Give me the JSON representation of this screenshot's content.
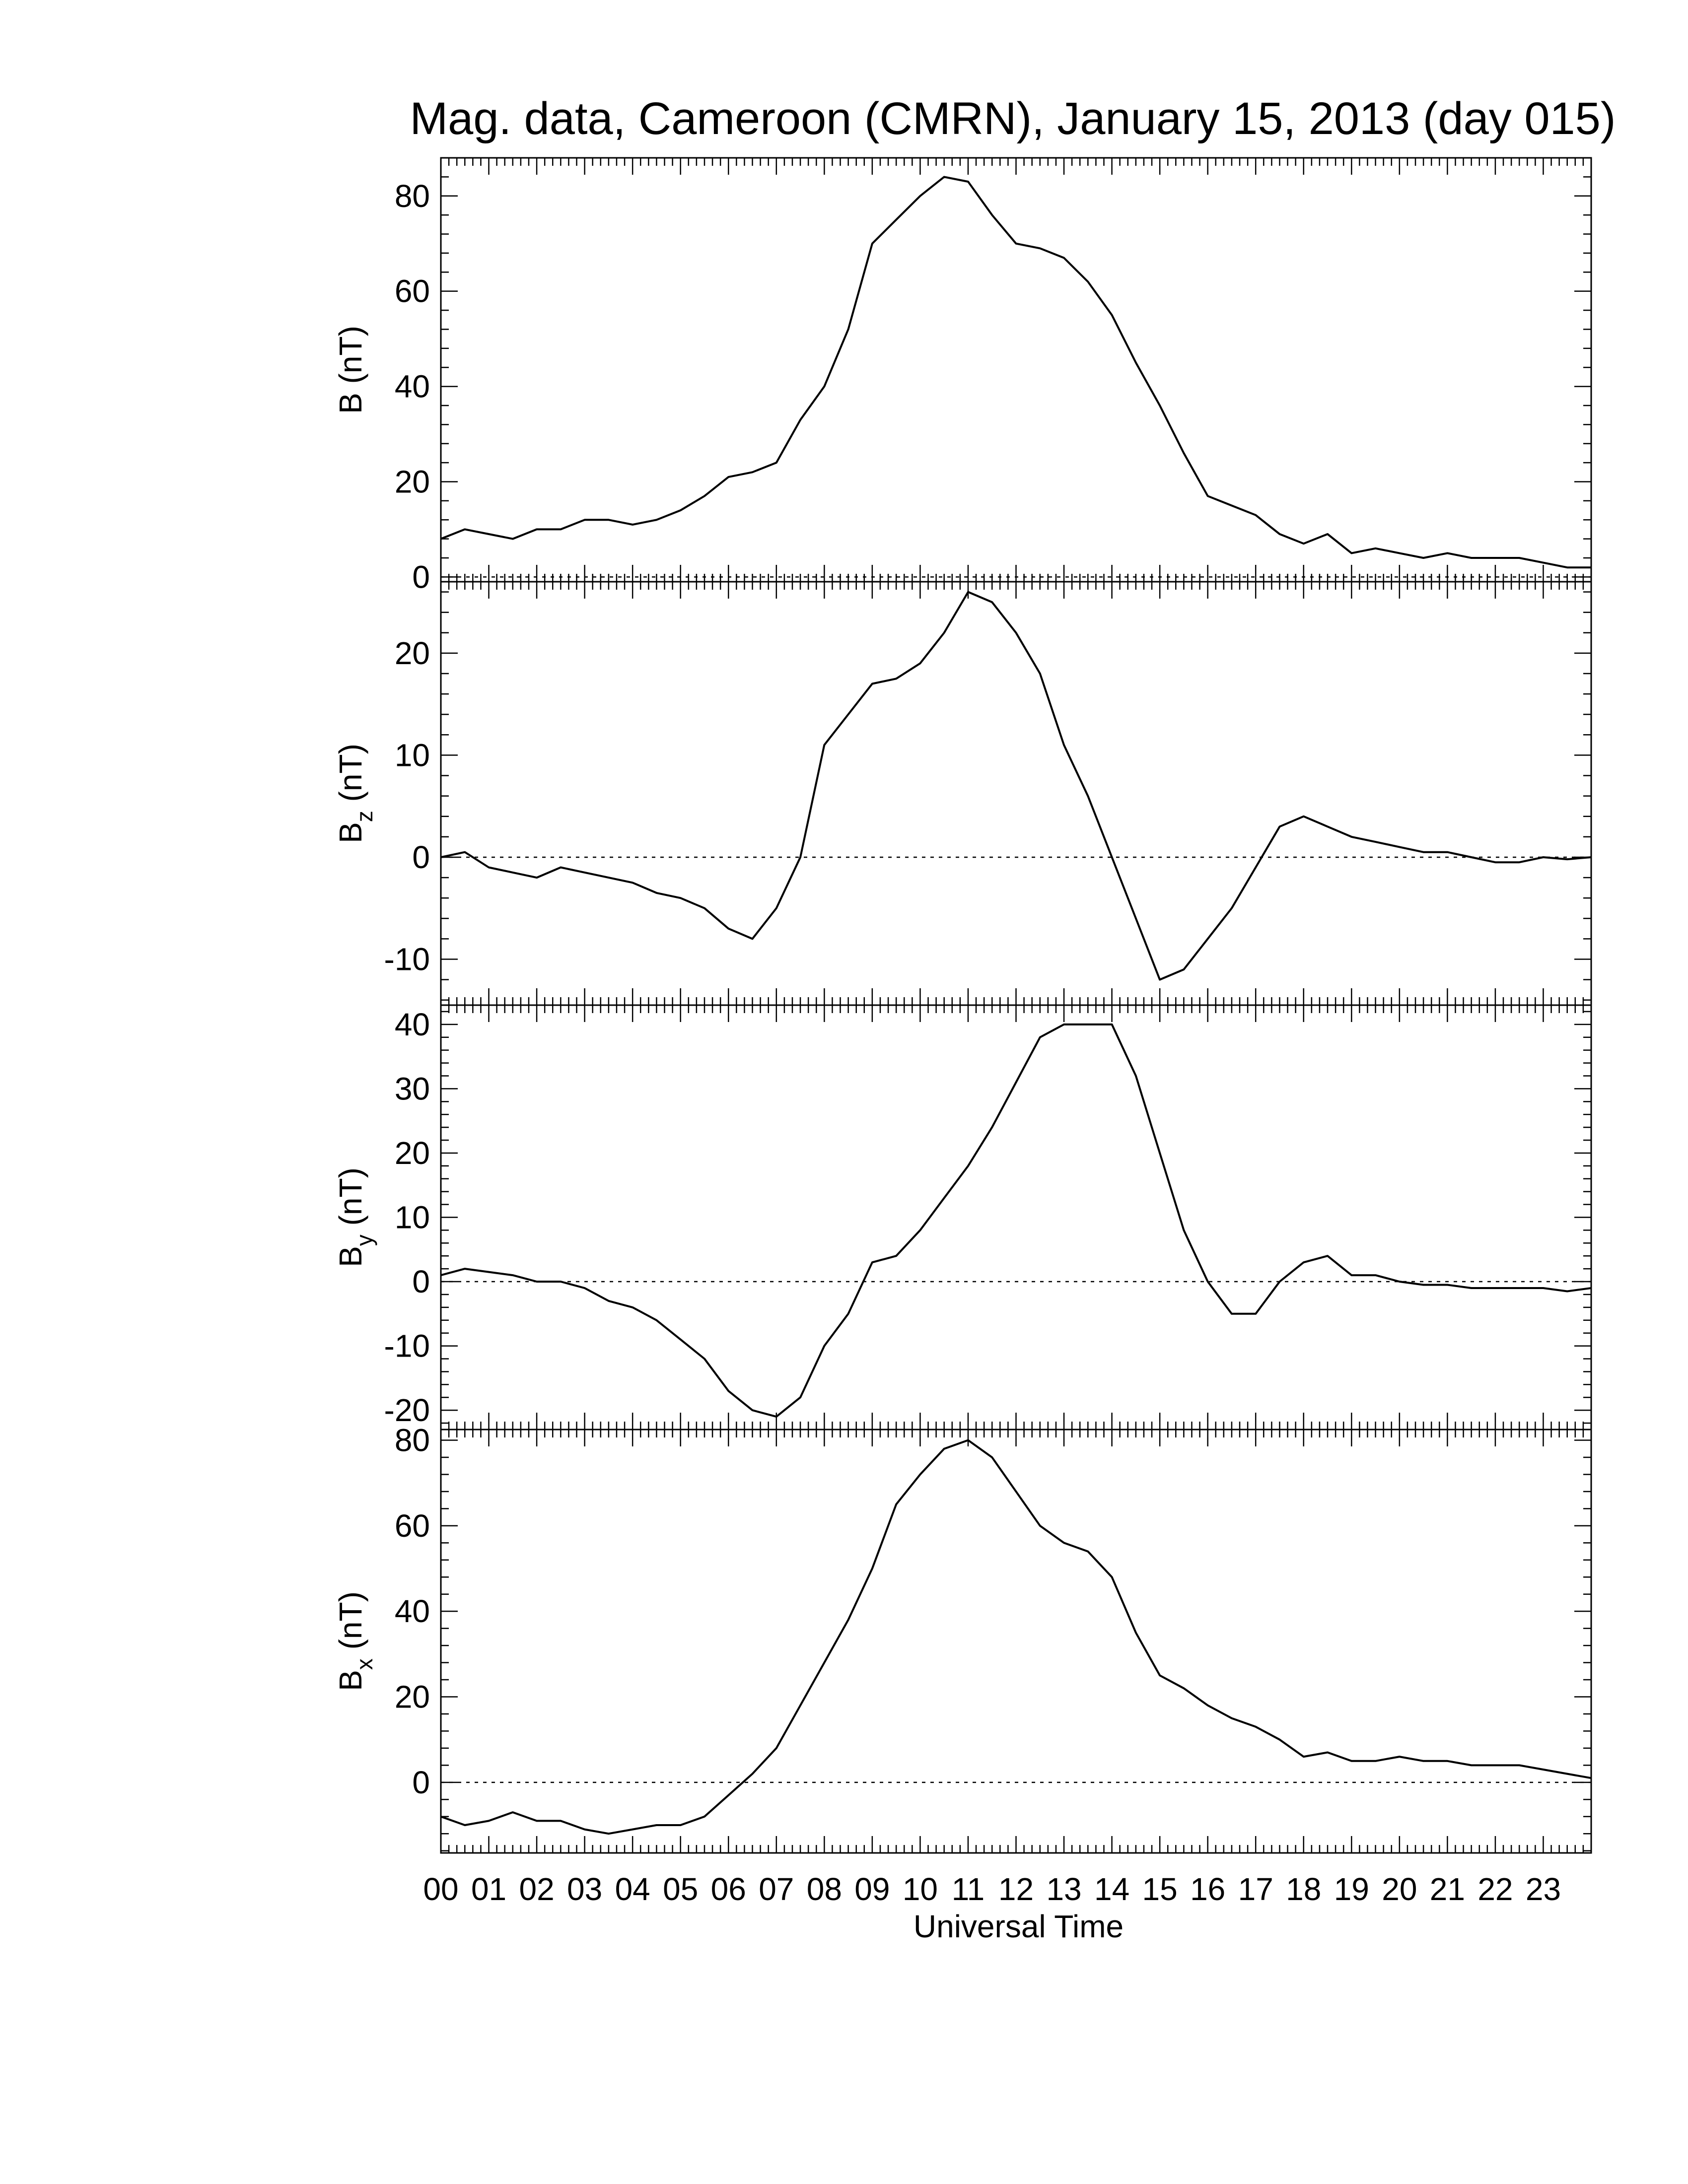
{
  "title": "Mag. data, Cameroon (CMRN), January 15, 2013 (day 015)",
  "colors": {
    "line": "#000000",
    "zero_line": "#000000",
    "background": "#ffffff"
  },
  "chart_data": [
    {
      "type": "line",
      "id": "B",
      "ylabel_main": "B",
      "ylabel_sub": "",
      "ylabel_unit": " (nT)",
      "ylim": [
        -1,
        88
      ],
      "yticks": [
        0,
        20,
        40,
        60,
        80
      ],
      "zero_line": true,
      "x": [
        0,
        0.5,
        1,
        1.5,
        2,
        2.5,
        3,
        3.5,
        4,
        4.5,
        5,
        5.5,
        6,
        6.5,
        7,
        7.5,
        8,
        8.5,
        9,
        9.5,
        10,
        10.5,
        11,
        11.5,
        12,
        12.5,
        13,
        13.5,
        14,
        14.5,
        15,
        15.5,
        16,
        16.5,
        17,
        17.5,
        18,
        18.5,
        19,
        19.5,
        20,
        20.5,
        21,
        21.5,
        22,
        22.5,
        23,
        23.5,
        24
      ],
      "series": [
        {
          "values": [
            8,
            10,
            9,
            8,
            10,
            10,
            12,
            12,
            11,
            12,
            14,
            17,
            21,
            22,
            24,
            33,
            40,
            52,
            70,
            75,
            80,
            84,
            83,
            76,
            70,
            69,
            67,
            62,
            55,
            45,
            36,
            26,
            17,
            15,
            13,
            9,
            7,
            9,
            5,
            6,
            5,
            4,
            5,
            4,
            4,
            4,
            3,
            2,
            2
          ]
        }
      ]
    },
    {
      "type": "line",
      "id": "Bz",
      "ylabel_main": "B",
      "ylabel_sub": "z",
      "ylabel_unit": " (nT)",
      "ylim": [
        -14.5,
        27
      ],
      "yticks": [
        -10,
        0,
        10,
        20
      ],
      "zero_line": true,
      "x": [
        0,
        0.5,
        1,
        1.5,
        2,
        2.5,
        3,
        3.5,
        4,
        4.5,
        5,
        5.5,
        6,
        6.5,
        7,
        7.5,
        8,
        8.5,
        9,
        9.5,
        10,
        10.5,
        11,
        11.5,
        12,
        12.5,
        13,
        13.5,
        14,
        14.5,
        15,
        15.5,
        16,
        16.5,
        17,
        17.5,
        18,
        18.5,
        19,
        19.5,
        20,
        20.5,
        21,
        21.5,
        22,
        22.5,
        23,
        23.5,
        24
      ],
      "series": [
        {
          "values": [
            0,
            0.5,
            -1,
            -1.5,
            -2,
            -1,
            -1.5,
            -2,
            -2.5,
            -3.5,
            -4,
            -5,
            -7,
            -8,
            -5,
            0,
            11,
            14,
            17,
            17.5,
            19,
            22,
            26,
            25,
            22,
            18,
            11,
            6,
            0,
            -6,
            -12,
            -11,
            -8,
            -5,
            -1,
            3,
            4,
            3,
            2,
            1.5,
            1,
            0.5,
            0.5,
            0,
            -0.5,
            -0.5,
            0,
            -0.2,
            0
          ]
        }
      ]
    },
    {
      "type": "line",
      "id": "By",
      "ylabel_main": "B",
      "ylabel_sub": "y",
      "ylabel_unit": " (nT)",
      "ylim": [
        -23,
        43
      ],
      "yticks": [
        -20,
        -10,
        0,
        10,
        20,
        30,
        40
      ],
      "zero_line": true,
      "x": [
        0,
        0.5,
        1,
        1.5,
        2,
        2.5,
        3,
        3.5,
        4,
        4.5,
        5,
        5.5,
        6,
        6.5,
        7,
        7.5,
        8,
        8.5,
        9,
        9.5,
        10,
        10.5,
        11,
        11.5,
        12,
        12.5,
        13,
        13.5,
        14,
        14.5,
        15,
        15.5,
        16,
        16.5,
        17,
        17.5,
        18,
        18.5,
        19,
        19.5,
        20,
        20.5,
        21,
        21.5,
        22,
        22.5,
        23,
        23.5,
        24
      ],
      "series": [
        {
          "values": [
            1,
            2,
            1.5,
            1,
            0,
            0,
            -1,
            -3,
            -4,
            -6,
            -9,
            -12,
            -17,
            -20,
            -21,
            -18,
            -10,
            -5,
            3,
            4,
            8,
            13,
            18,
            24,
            31,
            38,
            40,
            40,
            40,
            32,
            20,
            8,
            0,
            -5,
            -5,
            0,
            3,
            4,
            1,
            1,
            0,
            -0.5,
            -0.5,
            -1,
            -1,
            -1,
            -1,
            -1.5,
            -1
          ]
        }
      ]
    },
    {
      "type": "line",
      "id": "Bx",
      "ylabel_main": "B",
      "ylabel_sub": "x",
      "ylabel_unit": " (nT)",
      "ylim": [
        -16.5,
        82.5
      ],
      "yticks": [
        0,
        20,
        40,
        60,
        80
      ],
      "zero_line": true,
      "x": [
        0,
        0.5,
        1,
        1.5,
        2,
        2.5,
        3,
        3.5,
        4,
        4.5,
        5,
        5.5,
        6,
        6.5,
        7,
        7.5,
        8,
        8.5,
        9,
        9.5,
        10,
        10.5,
        11,
        11.5,
        12,
        12.5,
        13,
        13.5,
        14,
        14.5,
        15,
        15.5,
        16,
        16.5,
        17,
        17.5,
        18,
        18.5,
        19,
        19.5,
        20,
        20.5,
        21,
        21.5,
        22,
        22.5,
        23,
        23.5,
        24
      ],
      "series": [
        {
          "values": [
            -8,
            -10,
            -9,
            -7,
            -9,
            -9,
            -11,
            -12,
            -11,
            -10,
            -10,
            -8,
            -3,
            2,
            8,
            18,
            28,
            38,
            50,
            65,
            72,
            78,
            80,
            76,
            68,
            60,
            56,
            54,
            48,
            35,
            25,
            22,
            18,
            15,
            13,
            10,
            6,
            7,
            5,
            5,
            6,
            5,
            5,
            4,
            4,
            4,
            3,
            2,
            1
          ]
        }
      ]
    }
  ],
  "x_axis": {
    "range": [
      0,
      24
    ],
    "tick_labels": [
      "00",
      "01",
      "02",
      "03",
      "04",
      "05",
      "06",
      "07",
      "08",
      "09",
      "10",
      "11",
      "12",
      "13",
      "14",
      "15",
      "16",
      "17",
      "18",
      "19",
      "20",
      "21",
      "22",
      "23"
    ],
    "label": "Universal Time"
  }
}
